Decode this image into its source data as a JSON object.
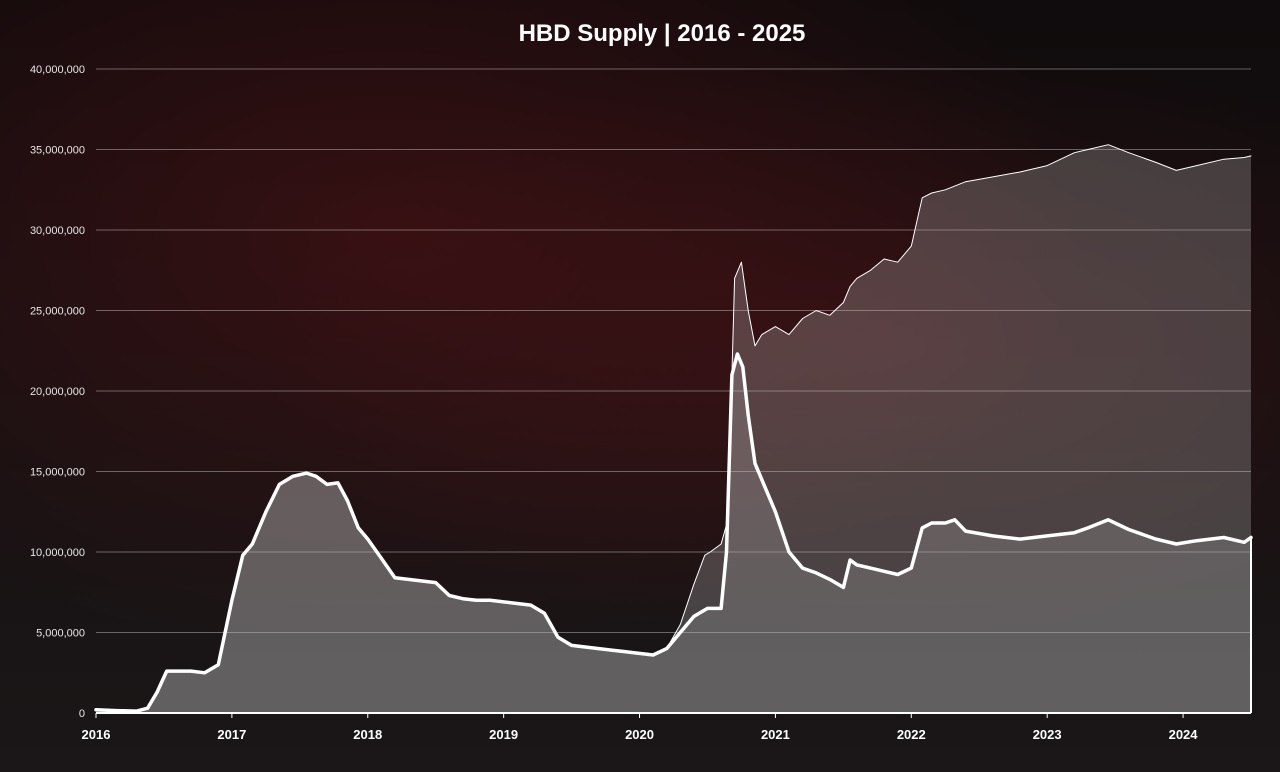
{
  "chart_data": {
    "type": "area",
    "title": "HBD Supply | 2016 - 2025",
    "xlabel": "",
    "ylabel": "",
    "xlim": [
      2016.0,
      2024.5
    ],
    "ylim": [
      0,
      40000000
    ],
    "grid": true,
    "y_ticks": [
      0,
      5000000,
      10000000,
      15000000,
      20000000,
      25000000,
      30000000,
      35000000,
      40000000
    ],
    "y_tick_labels": [
      "0",
      "5,000,000",
      "10,000,000",
      "15,000,000",
      "20,000,000",
      "25,000,000",
      "30,000,000",
      "35,000,000",
      "40,000,000"
    ],
    "x_ticks": [
      2016,
      2017,
      2018,
      2019,
      2020,
      2021,
      2022,
      2023,
      2024
    ],
    "x_tick_labels": [
      "2016",
      "2017",
      "2018",
      "2019",
      "2020",
      "2021",
      "2022",
      "2023",
      "2024"
    ],
    "series": [
      {
        "color": "#ffffff",
        "fill": "rgba(190,190,190,0.28)",
        "line_width": 1,
        "x": [
          2016.0,
          2016.15,
          2016.3,
          2016.38,
          2016.45,
          2016.52,
          2016.6,
          2016.7,
          2016.8,
          2016.9,
          2017.0,
          2017.08,
          2017.15,
          2017.25,
          2017.35,
          2017.45,
          2017.55,
          2017.62,
          2017.7,
          2017.78,
          2017.85,
          2017.93,
          2018.0,
          2018.1,
          2018.2,
          2018.3,
          2018.4,
          2018.5,
          2018.6,
          2018.7,
          2018.8,
          2018.9,
          2019.0,
          2019.1,
          2019.2,
          2019.3,
          2019.4,
          2019.5,
          2019.6,
          2019.7,
          2019.8,
          2019.9,
          2020.0,
          2020.1,
          2020.2,
          2020.3,
          2020.4,
          2020.48,
          2020.52,
          2020.6,
          2020.65,
          2020.7,
          2020.75,
          2020.8,
          2020.85,
          2020.9,
          2021.0,
          2021.1,
          2021.2,
          2021.3,
          2021.4,
          2021.5,
          2021.55,
          2021.6,
          2021.7,
          2021.8,
          2021.9,
          2022.0,
          2022.08,
          2022.15,
          2022.25,
          2022.4,
          2022.6,
          2022.8,
          2023.0,
          2023.2,
          2023.3,
          2023.45,
          2023.6,
          2023.8,
          2023.95,
          2024.1,
          2024.3,
          2024.45,
          2024.5
        ],
        "values": [
          200000,
          150000,
          120000,
          300000,
          1300000,
          2600000,
          2600000,
          2600000,
          2500000,
          3000000,
          7000000,
          9800000,
          10500000,
          12500000,
          14200000,
          14700000,
          14900000,
          14700000,
          14200000,
          14300000,
          13200000,
          11500000,
          10800000,
          9600000,
          8400000,
          8300000,
          8200000,
          8100000,
          7300000,
          7100000,
          7000000,
          7000000,
          6900000,
          6800000,
          6700000,
          6200000,
          4700000,
          4200000,
          4100000,
          4000000,
          3900000,
          3800000,
          3700000,
          3600000,
          4000000,
          5500000,
          8000000,
          9800000,
          10000000,
          10500000,
          12000000,
          27000000,
          28000000,
          25000000,
          22800000,
          23500000,
          24000000,
          23500000,
          24500000,
          25000000,
          24700000,
          25500000,
          26500000,
          27000000,
          27500000,
          28200000,
          28000000,
          29000000,
          32000000,
          32300000,
          32500000,
          33000000,
          33300000,
          33600000,
          34000000,
          34800000,
          35000000,
          35300000,
          34800000,
          34200000,
          33700000,
          34000000,
          34400000,
          34500000,
          34600000
        ]
      },
      {
        "color": "#ffffff",
        "fill": "rgba(190,190,190,0.22)",
        "line_width": 3.5,
        "x": [
          2016.0,
          2016.15,
          2016.3,
          2016.38,
          2016.45,
          2016.52,
          2016.6,
          2016.7,
          2016.8,
          2016.9,
          2017.0,
          2017.08,
          2017.15,
          2017.25,
          2017.35,
          2017.45,
          2017.55,
          2017.62,
          2017.7,
          2017.78,
          2017.85,
          2017.93,
          2018.0,
          2018.1,
          2018.2,
          2018.3,
          2018.4,
          2018.5,
          2018.6,
          2018.7,
          2018.8,
          2018.9,
          2019.0,
          2019.1,
          2019.2,
          2019.3,
          2019.4,
          2019.5,
          2019.6,
          2019.7,
          2019.8,
          2019.9,
          2020.0,
          2020.1,
          2020.2,
          2020.3,
          2020.4,
          2020.5,
          2020.6,
          2020.64,
          2020.68,
          2020.72,
          2020.76,
          2020.8,
          2020.85,
          2020.9,
          2021.0,
          2021.1,
          2021.2,
          2021.3,
          2021.4,
          2021.5,
          2021.55,
          2021.6,
          2021.7,
          2021.8,
          2021.9,
          2022.0,
          2022.08,
          2022.15,
          2022.25,
          2022.32,
          2022.4,
          2022.6,
          2022.8,
          2023.0,
          2023.2,
          2023.3,
          2023.45,
          2023.6,
          2023.8,
          2023.95,
          2024.1,
          2024.3,
          2024.45,
          2024.5
        ],
        "values": [
          200000,
          150000,
          120000,
          300000,
          1300000,
          2600000,
          2600000,
          2600000,
          2500000,
          3000000,
          7000000,
          9800000,
          10500000,
          12500000,
          14200000,
          14700000,
          14900000,
          14700000,
          14200000,
          14300000,
          13200000,
          11500000,
          10800000,
          9600000,
          8400000,
          8300000,
          8200000,
          8100000,
          7300000,
          7100000,
          7000000,
          7000000,
          6900000,
          6800000,
          6700000,
          6200000,
          4700000,
          4200000,
          4100000,
          4000000,
          3900000,
          3800000,
          3700000,
          3600000,
          4000000,
          5000000,
          6000000,
          6500000,
          6500000,
          10000000,
          21000000,
          22300000,
          21500000,
          18500000,
          15500000,
          14500000,
          12500000,
          10000000,
          9000000,
          8700000,
          8300000,
          7800000,
          9500000,
          9200000,
          9000000,
          8800000,
          8600000,
          9000000,
          11500000,
          11800000,
          11800000,
          12000000,
          11300000,
          11000000,
          10800000,
          11000000,
          11200000,
          11500000,
          12000000,
          11400000,
          10800000,
          10500000,
          10700000,
          10900000,
          10600000,
          10900000
        ]
      }
    ]
  }
}
